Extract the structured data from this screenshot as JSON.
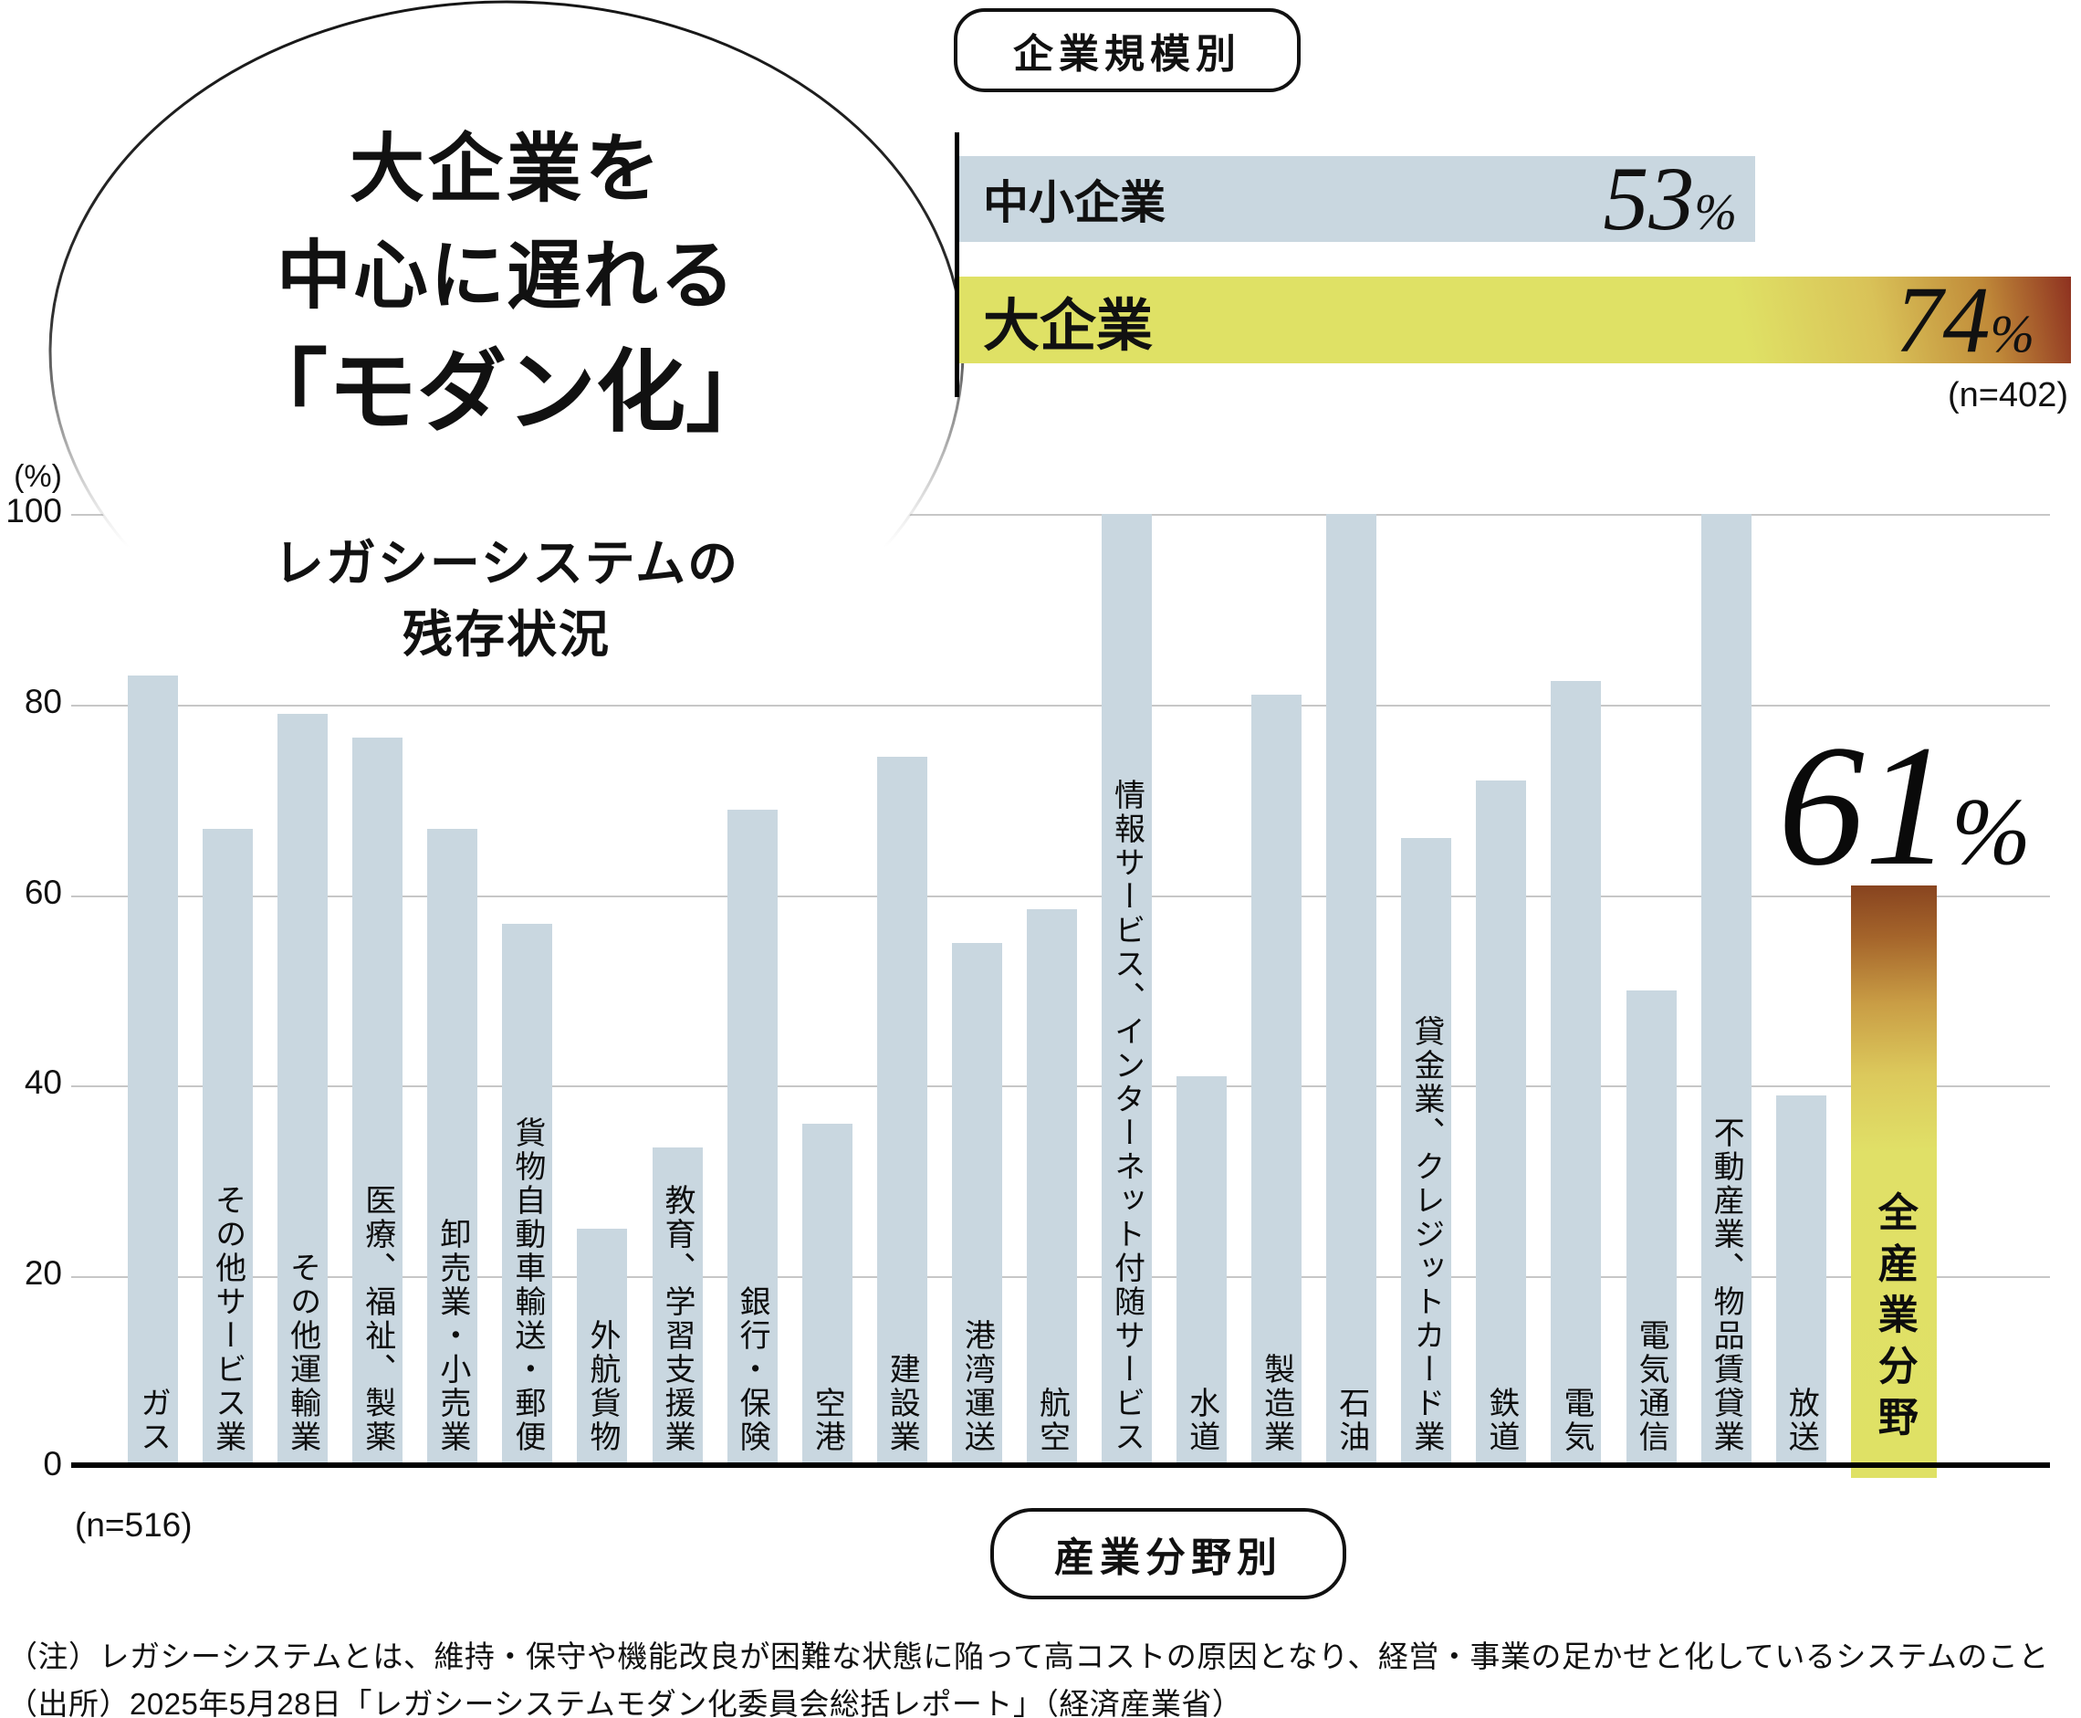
{
  "bubble": {
    "line1": "大企業を",
    "line2": "中心に遅れる",
    "line3": "「モダン化」",
    "sub1": "レガシーシステムの",
    "sub2": "残存状況"
  },
  "size_chart": {
    "pill": "企業規模別",
    "note": "(n=402)",
    "max_value": 74,
    "bars": [
      {
        "label": "中小企業",
        "value": 53,
        "display": "53",
        "unit": "%"
      },
      {
        "label": "大企業",
        "value": 74,
        "display": "74",
        "unit": "%"
      }
    ]
  },
  "industry_chart": {
    "pill": "産業分野別",
    "note": "(n=516)",
    "unit_label": "(%)",
    "yticks": [
      100,
      80,
      60,
      40,
      20,
      0
    ],
    "highlight": {
      "display": "61",
      "unit": "%"
    }
  },
  "footnotes": [
    "（注）レガシーシステムとは、維持・保守や機能改良が困難な状態に陥って高コストの原因となり、経営・事業の足かせと化しているシステムのこと",
    "（出所）2025年5月28日「レガシーシステムモダン化委員会総括レポート」（経済産業省）"
  ],
  "colors": {
    "bar_blue": "#c9d7e0",
    "bar_yellow": "#dfe165",
    "accent_dark_brown": "#87431f",
    "gradient_tip_maroon": "#8e3120",
    "gridline": "#c7c7c7"
  },
  "chart_data": [
    {
      "type": "bar",
      "orientation": "horizontal",
      "title": "企業規模別",
      "categories": [
        "中小企業",
        "大企業"
      ],
      "values": [
        53,
        74
      ],
      "unit": "%",
      "sample_size": "n=402",
      "xlim": [
        0,
        74
      ]
    },
    {
      "type": "bar",
      "orientation": "vertical",
      "title": "レガシーシステムの残存状況（産業分野別）",
      "ylabel": "(%)",
      "ylim": [
        0,
        100
      ],
      "grid": true,
      "sample_size": "n=516",
      "categories": [
        "ガス",
        "その他サービス業",
        "その他運輸業",
        "医療、福祉、製薬",
        "卸売業・小売業",
        "貨物自動車輸送・郵便",
        "外航貨物",
        "教育、学習支援業",
        "銀行・保険",
        "空港",
        "建設業",
        "港湾運送",
        "航空",
        "情報サービス、インターネット付随サービス",
        "水道",
        "製造業",
        "石油",
        "貸金業、クレジットカード業",
        "鉄道",
        "電気",
        "電気通信",
        "不動産業、物品賃貸業",
        "放送",
        "全産業分野"
      ],
      "values": [
        83,
        67,
        79,
        76.5,
        67,
        57,
        25,
        33.5,
        69,
        36,
        74.5,
        55,
        58.5,
        100,
        41,
        81,
        100,
        66,
        72,
        82.5,
        50,
        100,
        39,
        61
      ],
      "highlight_index": 23,
      "annotation": "61%"
    }
  ]
}
